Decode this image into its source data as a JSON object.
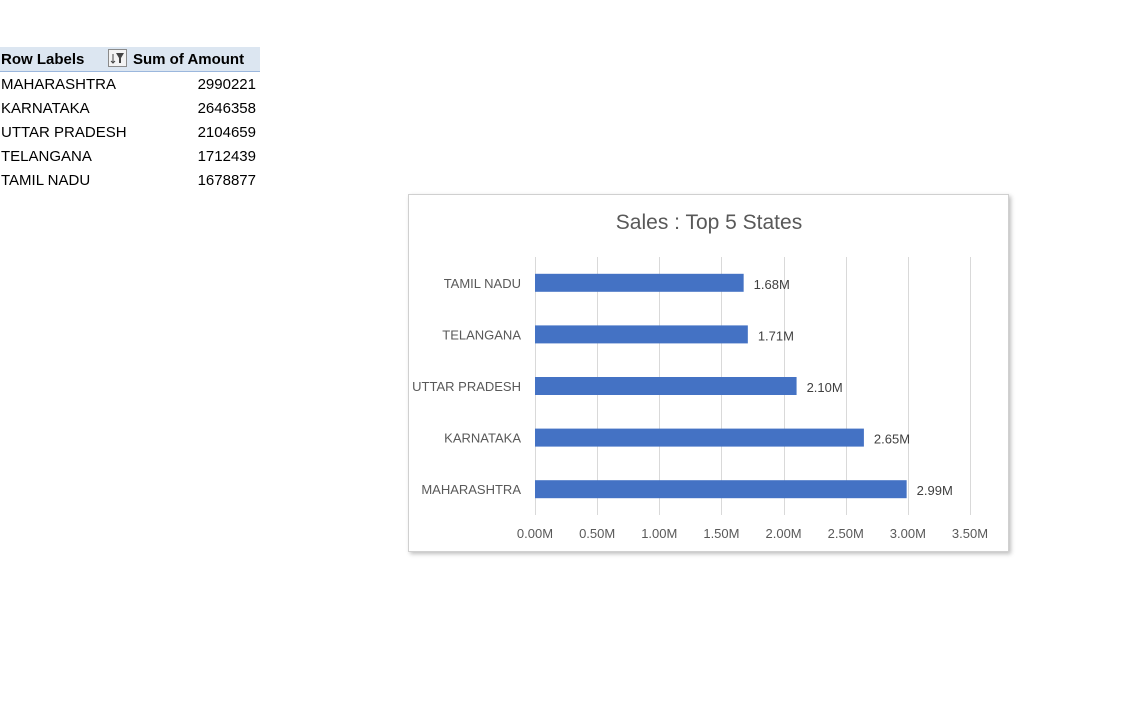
{
  "pivot": {
    "header": {
      "row_labels": "Row Labels",
      "sum_label": "Sum of Amount"
    },
    "filter_icon": "filter-sort-icon",
    "rows": [
      {
        "name": "MAHARASHTRA",
        "value": "2990221"
      },
      {
        "name": "KARNATAKA",
        "value": "2646358"
      },
      {
        "name": "UTTAR PRADESH",
        "value": "2104659"
      },
      {
        "name": "TELANGANA",
        "value": "1712439"
      },
      {
        "name": "TAMIL NADU",
        "value": "1678877"
      }
    ]
  },
  "chart_data": {
    "type": "bar",
    "orientation": "horizontal",
    "title": "Sales : Top 5 States",
    "categories": [
      "TAMIL NADU",
      "TELANGANA",
      "UTTAR PRADESH",
      "KARNATAKA",
      "MAHARASHTRA"
    ],
    "values": [
      1678877,
      1712439,
      2104659,
      2646358,
      2990221
    ],
    "data_labels": [
      "1.68M",
      "1.71M",
      "2.10M",
      "2.65M",
      "2.99M"
    ],
    "xlim": [
      0,
      3500000
    ],
    "x_ticks": [
      0,
      500000,
      1000000,
      1500000,
      2000000,
      2500000,
      3000000,
      3500000
    ],
    "x_tick_labels": [
      "0.00M",
      "0.50M",
      "1.00M",
      "1.50M",
      "2.00M",
      "2.50M",
      "3.00M",
      "3.50M"
    ],
    "grid": true,
    "legend": "none",
    "bar_color": "#4472c4"
  }
}
